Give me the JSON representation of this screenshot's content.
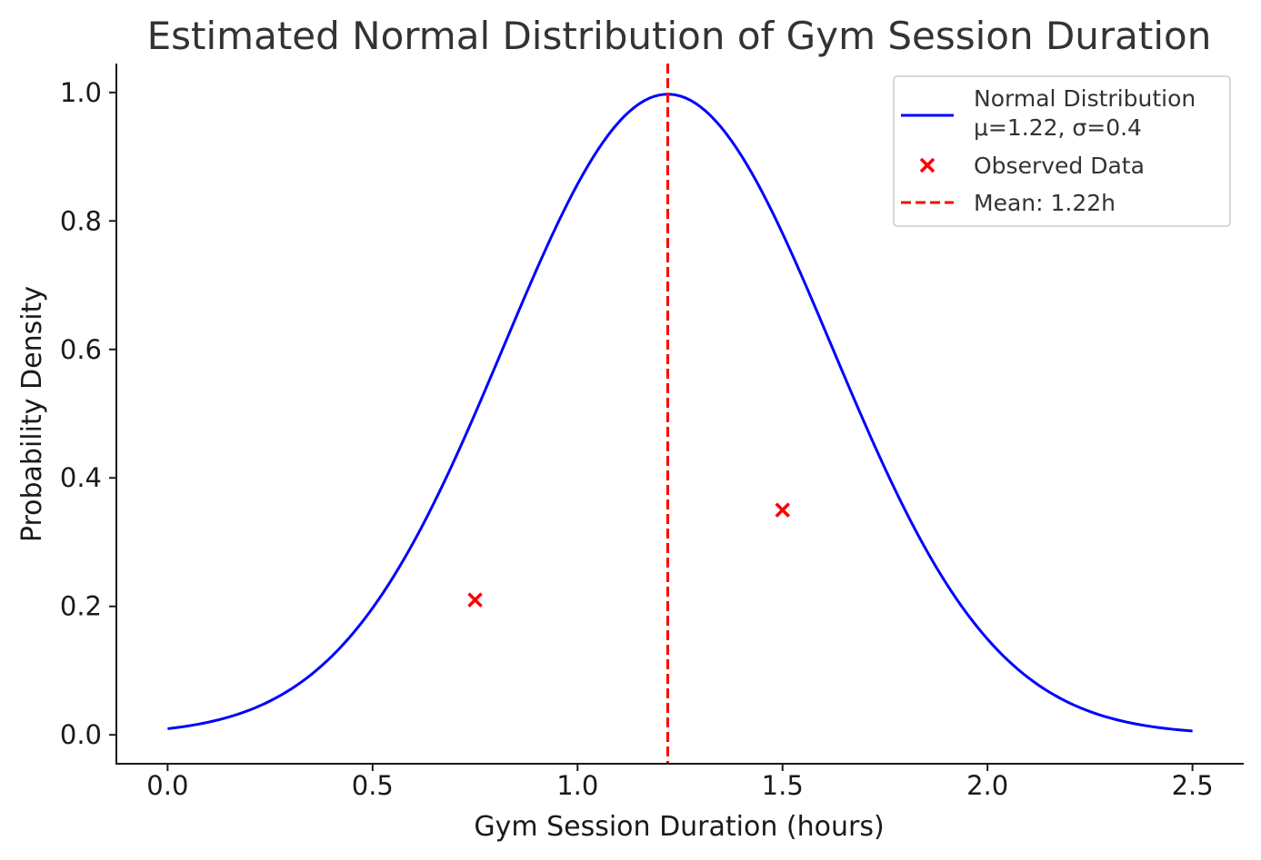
{
  "chart_data": {
    "type": "line",
    "title": "Estimated Normal Distribution of Gym Session Duration",
    "xlabel": "Gym Session Duration (hours)",
    "ylabel": "Probability Density",
    "xlim": [
      -0.125,
      2.625
    ],
    "ylim": [
      -0.045,
      1.045
    ],
    "x_ticks": [
      "0.0",
      "0.5",
      "1.0",
      "1.5",
      "2.0",
      "2.5"
    ],
    "x_tick_values": [
      0,
      0.5,
      1.0,
      1.5,
      2.0,
      2.5
    ],
    "y_ticks": [
      "0.0",
      "0.2",
      "0.4",
      "0.6",
      "0.8",
      "1.0"
    ],
    "y_tick_values": [
      0,
      0.2,
      0.4,
      0.6,
      0.8,
      1.0
    ],
    "grid": false,
    "legend_position": "top-right",
    "series": [
      {
        "name": "Normal Distribution\nμ=1.22, σ=0.4",
        "name_lines": [
          "Normal Distribution",
          "μ=1.22, σ=0.4"
        ],
        "kind": "line",
        "color": "#0000ff",
        "mean": 1.22,
        "sd": 0.4,
        "x_range": [
          0,
          2.5
        ]
      },
      {
        "name": "Observed Data",
        "kind": "scatter",
        "marker": "x",
        "color": "#ff0000",
        "points": [
          {
            "x": 0.75,
            "y": 0.21
          },
          {
            "x": 1.5,
            "y": 0.35
          }
        ]
      },
      {
        "name": "Mean: 1.22h",
        "kind": "vline",
        "style": "dashed",
        "color": "#ff0000",
        "x": 1.22
      }
    ]
  }
}
